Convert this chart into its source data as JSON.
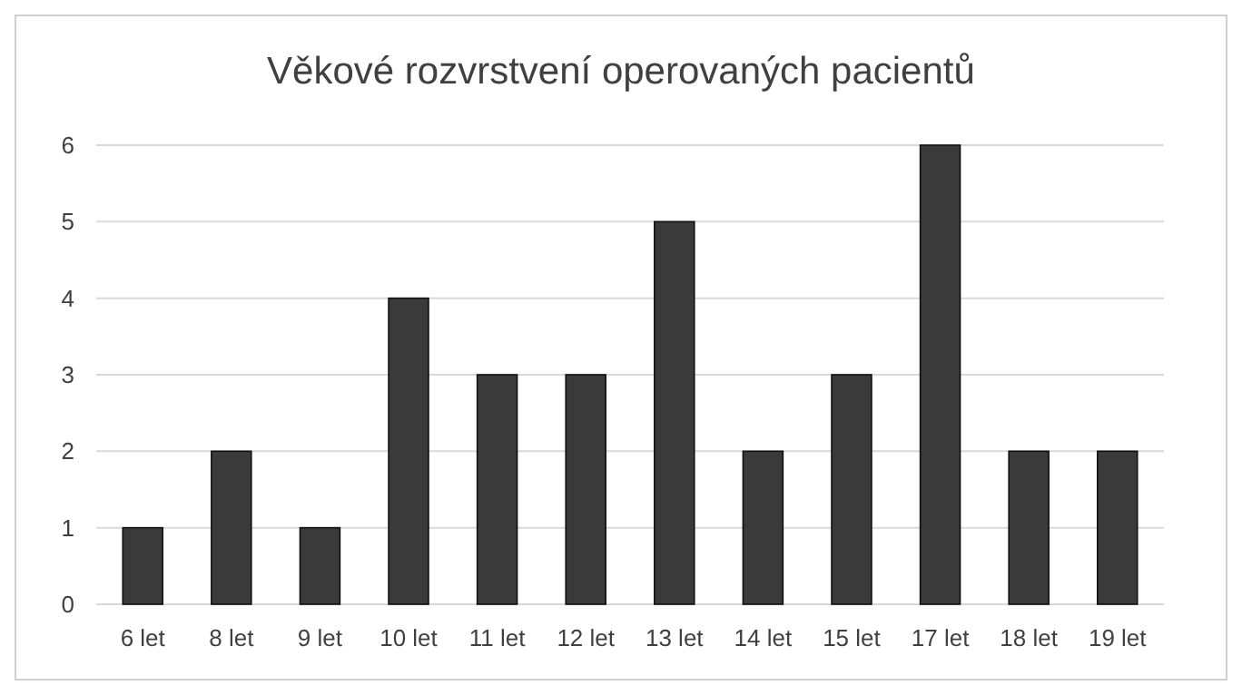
{
  "chart_data": {
    "type": "bar",
    "title": "Věkové rozvrstvení operovaných pacientů",
    "categories": [
      "6 let",
      "8 let",
      "9 let",
      "10 let",
      "11 let",
      "12 let",
      "13 let",
      "14 let",
      "15 let",
      "17 let",
      "18 let",
      "19 let"
    ],
    "values": [
      1,
      2,
      1,
      4,
      3,
      3,
      5,
      2,
      3,
      6,
      2,
      2
    ],
    "color": "#3a3a3a",
    "ylim": [
      0,
      6
    ],
    "yticks": [
      0,
      1,
      2,
      3,
      4,
      5,
      6
    ],
    "grid": "y"
  }
}
